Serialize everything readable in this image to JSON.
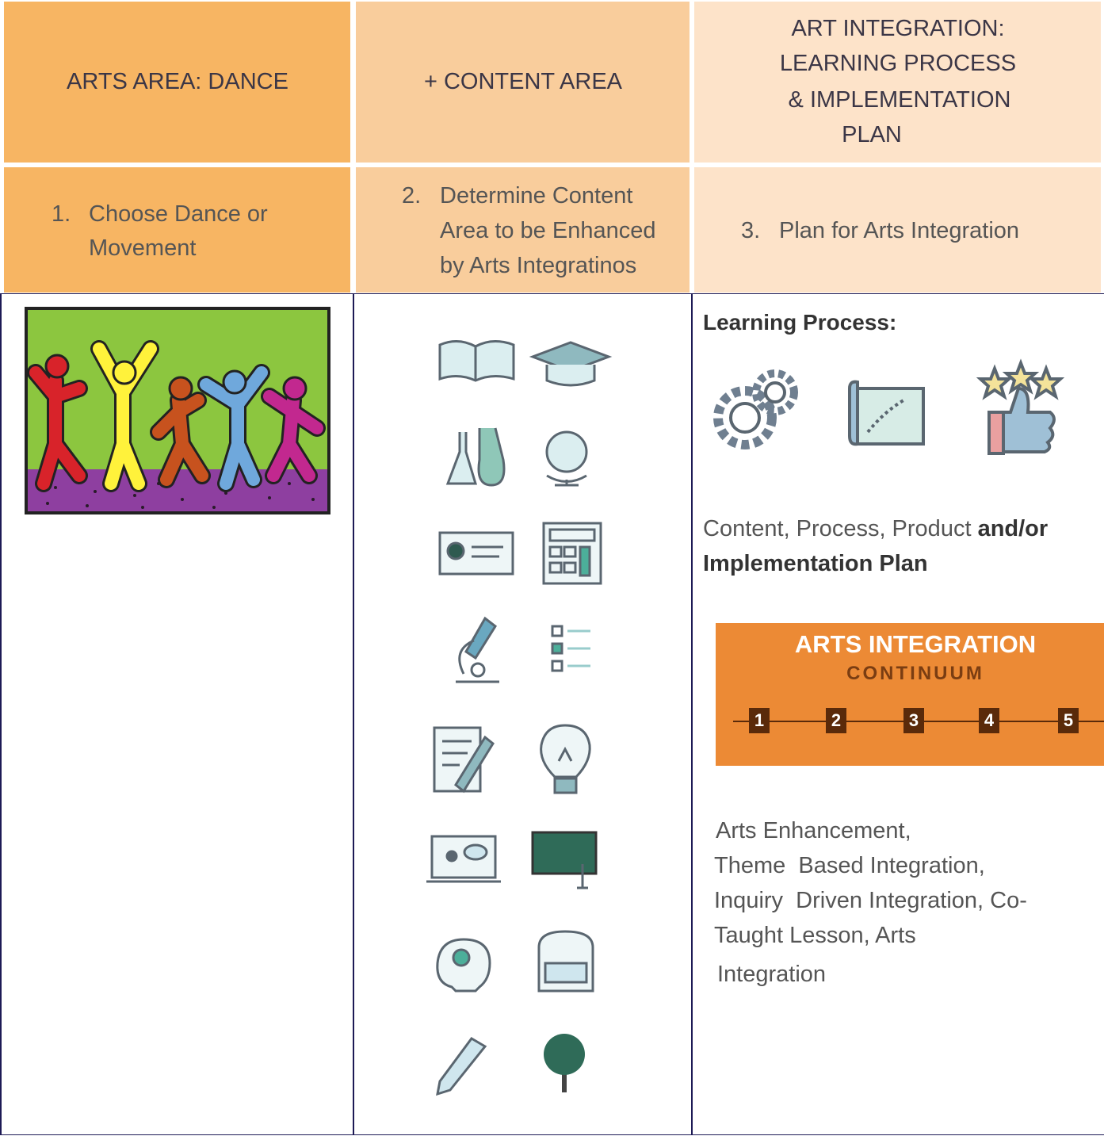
{
  "header": {
    "columns": [
      {
        "lines": [
          "ARTS AREA: DANCE"
        ]
      },
      {
        "lines": [
          "+ CONTENT AREA"
        ]
      },
      {
        "lines": [
          "ART INTEGRATION:",
          "LEARNING PROCESS",
          "& IMPLEMENTATION",
          "PLAN"
        ]
      }
    ]
  },
  "steps": [
    {
      "number": "1.",
      "lines": [
        "Choose Dance or",
        "Movement"
      ]
    },
    {
      "number": "2.",
      "lines": [
        "Determine Content",
        "Area to be Enhanced",
        "by Arts Integratinos"
      ]
    },
    {
      "number": "3.",
      "lines": [
        "Plan for Arts Integration"
      ]
    }
  ],
  "learning_process": {
    "label": "Learning Process:",
    "text": {
      "plain": "Content, Process, Product ",
      "bold_line1": "and/or",
      "bold_line2": "Implementation Plan"
    }
  },
  "continuum": {
    "title": "ARTS INTEGRATION",
    "subtitle": "CONTINUUM",
    "steps": [
      "1",
      "2",
      "3",
      "4",
      "5"
    ]
  },
  "arts_list": {
    "lines": [
      "Arts Enhancement,",
      "Theme  Based Integration,",
      "Inquiry  Driven Integration, Co-",
      "Taught Lesson, Arts",
      "Integration"
    ]
  }
}
